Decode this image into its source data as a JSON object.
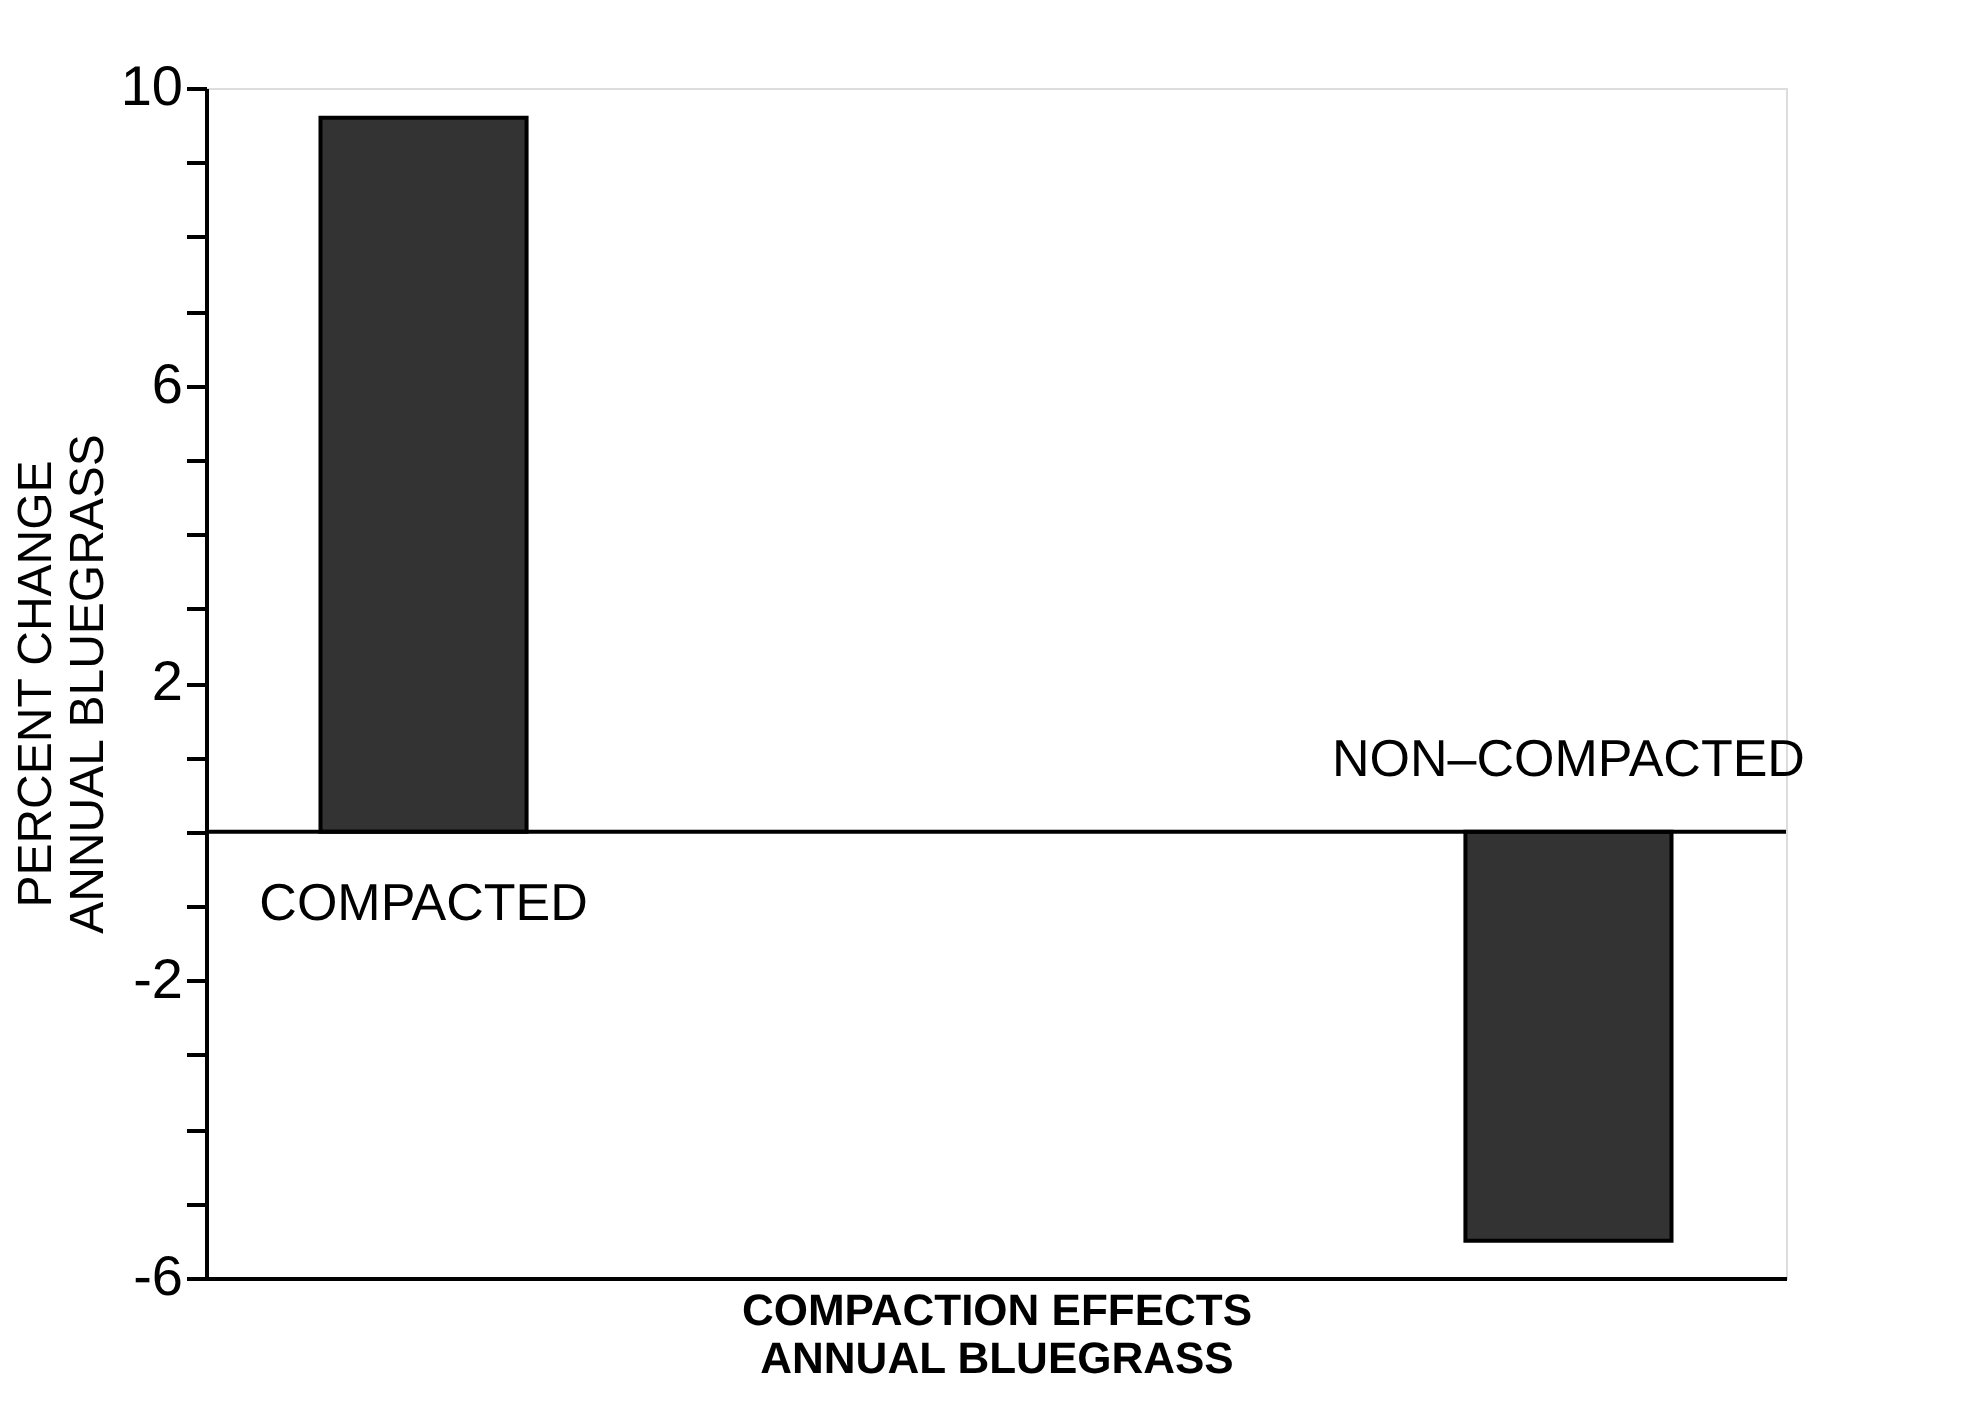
{
  "chart_data": {
    "type": "bar",
    "categories": [
      "COMPACTED",
      "NON–COMPACTED"
    ],
    "values": [
      9.6,
      -5.5
    ],
    "color": "#333333",
    "xlabel": "COMPACTION EFFECTS\nANNUAL BLUEGRASS",
    "ylabel": "PERCENT CHANGE\nANNUAL BLUEGRASS",
    "ylim": [
      -6,
      10
    ],
    "yticks": [
      -6,
      {
        "value": -5,
        "label": null
      },
      {
        "value": -4,
        "label": null
      },
      {
        "value": -3,
        "label": null
      },
      -2,
      {
        "value": -1,
        "label": null
      },
      {
        "value": 0,
        "label": null
      },
      {
        "value": 1,
        "label": null
      },
      2,
      {
        "value": 3,
        "label": null
      },
      {
        "value": 4,
        "label": null
      },
      {
        "value": 5,
        "label": null
      },
      6,
      {
        "value": 7,
        "label": null
      },
      {
        "value": 8,
        "label": null
      },
      {
        "value": 9,
        "label": null
      },
      10
    ],
    "ref_lines": [
      {
        "axis": "y",
        "value": 0,
        "color": "#000000",
        "line_style": "solid"
      }
    ],
    "tick_labels": "y",
    "grid": false
  }
}
